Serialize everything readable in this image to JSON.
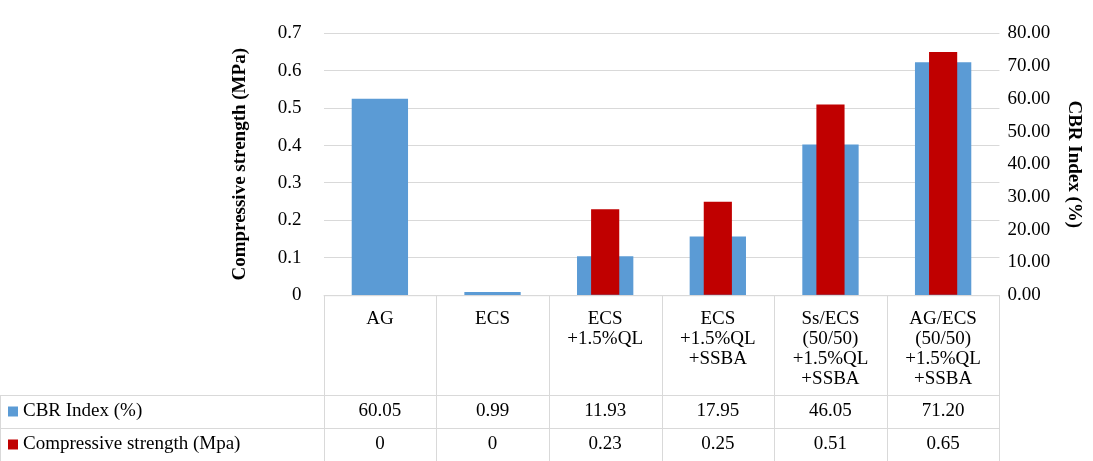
{
  "chart_data": {
    "type": "bar",
    "ylabel": "Compressive strength (MPa)",
    "y2label": "CBR Index (%)",
    "categories": [
      "AG",
      "ECS",
      "ECS +1.5%QL",
      "ECS +1.5%QL +SSBA",
      "Ss/ECS (50/50) +1.5%QL +SSBA",
      "AG/ECS (50/50) +1.5%QL +SSBA"
    ],
    "series": [
      {
        "name": "CBR Index (%)",
        "color": "#5b9bd5",
        "axis": "y2",
        "values": [
          60.05,
          0.99,
          11.93,
          17.95,
          46.05,
          71.2
        ],
        "value_labels": [
          "60.05",
          "0.99",
          "11.93",
          "17.95",
          "46.05",
          "71.20"
        ]
      },
      {
        "name": "Compressive strength (Mpa)",
        "color": "#c00000",
        "axis": "y",
        "values": [
          0,
          0,
          0.23,
          0.25,
          0.51,
          0.65
        ],
        "value_labels": [
          "0",
          "0",
          "0.23",
          "0.25",
          "0.51",
          "0.65"
        ]
      }
    ],
    "ylim": [
      0,
      0.7
    ],
    "yticks": [
      0,
      0.1,
      0.2,
      0.3,
      0.4,
      0.5,
      0.6,
      0.7
    ],
    "y2lim": [
      0,
      80
    ],
    "y2ticks": [
      {
        "value": 0,
        "label": "0.00"
      },
      {
        "value": 10,
        "label": "10.00"
      },
      {
        "value": 20,
        "label": "20.00"
      },
      {
        "value": 30,
        "label": "30.00"
      },
      {
        "value": 40,
        "label": "40.00"
      },
      {
        "value": 50,
        "label": "50.00"
      },
      {
        "value": 60,
        "label": "60.00"
      },
      {
        "value": 70,
        "label": "70.00"
      },
      {
        "value": 80,
        "label": "80.00"
      }
    ],
    "grid": "y",
    "legend": "bottom"
  }
}
